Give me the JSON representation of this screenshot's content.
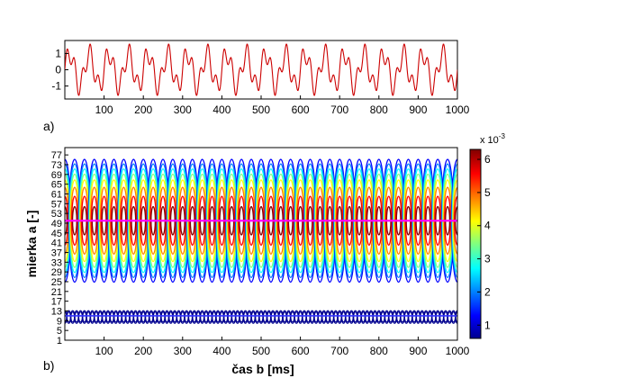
{
  "chart_data": [
    {
      "type": "line",
      "panel_label": "a)",
      "title": "",
      "xlabel": "",
      "ylabel": "",
      "xlim": [
        0,
        1000
      ],
      "ylim": [
        -1.8,
        1.8
      ],
      "x_ticks": [
        "100",
        "200",
        "300",
        "400",
        "500",
        "600",
        "700",
        "800",
        "900",
        "1000"
      ],
      "y_ticks": [
        "1",
        "0",
        "-1"
      ],
      "series": [
        {
          "color": "#cc0000",
          "components": [
            {
              "amplitude": 1.0,
              "period_ms": 50
            },
            {
              "amplitude": 0.62,
              "period_ms": 20
            }
          ]
        }
      ],
      "grid": false
    },
    {
      "type": "contour",
      "panel_label": "b)",
      "title": "",
      "xlabel": "čas b [ms]",
      "ylabel": "mierka a [-]",
      "xlim": [
        0,
        1000
      ],
      "ylim": [
        1,
        80
      ],
      "x_ticks": [
        "100",
        "200",
        "300",
        "400",
        "500",
        "600",
        "700",
        "800",
        "900",
        "1000"
      ],
      "y_ticks": [
        "1",
        "5",
        "9",
        "13",
        "17",
        "21",
        "25",
        "29",
        "33",
        "37",
        "41",
        "45",
        "49",
        "53",
        "57",
        "61",
        "65",
        "69",
        "73",
        "77"
      ],
      "colorbar": {
        "multiplier": "x 10",
        "exponent": "-3",
        "ticks": [
          "1",
          "2",
          "3",
          "4",
          "5",
          "6"
        ],
        "range": [
          0.6,
          6.3
        ],
        "colors": [
          "#00008f",
          "#0000ff",
          "#0080ff",
          "#00ffff",
          "#80ff80",
          "#ffff00",
          "#ff8000",
          "#ff0000",
          "#800000"
        ]
      },
      "ridges": [
        {
          "scale_center": 50,
          "scale_halfwidth": 25,
          "period_ms": 50,
          "max": 6.2
        },
        {
          "scale_center": 10.5,
          "scale_halfwidth": 2.5,
          "period_ms": 20,
          "max": 1.3
        }
      ],
      "highlight_lines": [
        {
          "scale": 50,
          "color": "#ff00ff"
        },
        {
          "scale": 11,
          "color": "#3333ff"
        }
      ],
      "grid": false
    }
  ]
}
